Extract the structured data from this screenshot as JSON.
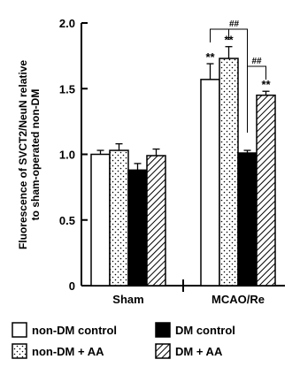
{
  "chart_data": {
    "type": "bar",
    "categories": [
      "Sham",
      "MCAO/Re"
    ],
    "series": [
      {
        "name": "non-DM control",
        "values": [
          1.0,
          1.57
        ],
        "errors": [
          0.03,
          0.12
        ]
      },
      {
        "name": "non-DM + AA",
        "values": [
          1.03,
          1.73
        ],
        "errors": [
          0.05,
          0.09
        ]
      },
      {
        "name": "DM control",
        "values": [
          0.88,
          1.01
        ],
        "errors": [
          0.05,
          0.02
        ]
      },
      {
        "name": "DM + AA",
        "values": [
          0.99,
          1.45
        ],
        "errors": [
          0.05,
          0.03
        ]
      }
    ],
    "ylabel": "Fluorescence of SVCT2/NeuN relative to sham-operated non-DM",
    "ylabel_lines": [
      "Fluorescence of SVCT2/NeuN relative",
      "to sham-operated non-DM"
    ],
    "ylim": [
      0,
      2.0
    ],
    "yticks": [
      "0",
      "0.5",
      "1.0",
      "1.5",
      "2.0"
    ],
    "legend_position": "bottom",
    "annotations": {
      "significance": [
        "**",
        "**",
        "**"
      ],
      "bracket_marks": [
        "##",
        "##"
      ]
    },
    "colors": {
      "non_dm_control": "#ffffff",
      "non_dm_aa": "#ffffff",
      "dm_control": "#000000",
      "dm_aa": "#ffffff",
      "axis": "#000000"
    },
    "grid": false
  }
}
